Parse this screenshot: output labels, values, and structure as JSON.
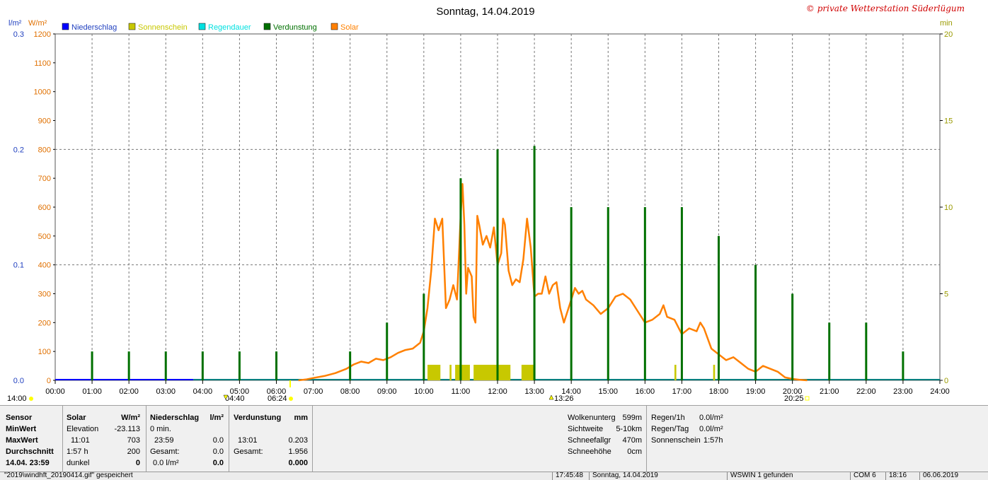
{
  "chart_data": {
    "type": "line",
    "title": "Sonntag, 14.04.2019",
    "copyright": "© private Wetterstation Süderlügum",
    "x_tick_labels": [
      "00:00",
      "01:00",
      "02:00",
      "03:00",
      "04:00",
      "05:00",
      "06:00",
      "07:00",
      "08:00",
      "09:00",
      "10:00",
      "11:00",
      "12:00",
      "13:00",
      "14:00",
      "15:00",
      "16:00",
      "17:00",
      "18:00",
      "19:00",
      "20:00",
      "21:00",
      "22:00",
      "23:00",
      "24:00"
    ],
    "xlim": [
      0,
      24
    ],
    "axes": {
      "left_outer": {
        "unit": "l/m²",
        "ticks": [
          "0.0",
          "0.1",
          "0.2",
          "0.3"
        ],
        "ylim": [
          0,
          0.3
        ],
        "color": "#1f3fbf"
      },
      "left_inner": {
        "unit": "W/m²",
        "ticks": [
          "0",
          "100",
          "200",
          "300",
          "400",
          "500",
          "600",
          "700",
          "800",
          "900",
          "1000",
          "1100",
          "1200"
        ],
        "ylim": [
          0,
          1200
        ],
        "color": "#e07000"
      },
      "right": {
        "unit": "min",
        "ticks": [
          "0",
          "5",
          "10",
          "15",
          "20"
        ],
        "ylim": [
          0,
          20
        ],
        "color": "#9a9a00"
      }
    },
    "legend": [
      {
        "name": "Niederschlag",
        "color": "#0000ff"
      },
      {
        "name": "Sonnenschein",
        "color": "#c8c800"
      },
      {
        "name": "Regendauer",
        "color": "#00e0e0"
      },
      {
        "name": "Verdunstung",
        "color": "#007000"
      },
      {
        "name": "Solar",
        "color": "#ff8000"
      }
    ],
    "grid": true,
    "series": [
      {
        "name": "Solar",
        "axis": "W/m²",
        "points": [
          [
            6.6,
            0
          ],
          [
            6.8,
            3
          ],
          [
            7.0,
            8
          ],
          [
            7.3,
            15
          ],
          [
            7.6,
            25
          ],
          [
            7.9,
            40
          ],
          [
            8.1,
            55
          ],
          [
            8.3,
            65
          ],
          [
            8.5,
            60
          ],
          [
            8.7,
            75
          ],
          [
            8.9,
            70
          ],
          [
            9.1,
            80
          ],
          [
            9.3,
            95
          ],
          [
            9.5,
            105
          ],
          [
            9.7,
            110
          ],
          [
            9.9,
            130
          ],
          [
            10.0,
            170
          ],
          [
            10.1,
            250
          ],
          [
            10.2,
            380
          ],
          [
            10.3,
            560
          ],
          [
            10.4,
            520
          ],
          [
            10.5,
            560
          ],
          [
            10.6,
            250
          ],
          [
            10.7,
            280
          ],
          [
            10.8,
            330
          ],
          [
            10.9,
            280
          ],
          [
            11.0,
            570
          ],
          [
            11.05,
            680
          ],
          [
            11.1,
            540
          ],
          [
            11.15,
            300
          ],
          [
            11.2,
            390
          ],
          [
            11.3,
            360
          ],
          [
            11.35,
            220
          ],
          [
            11.4,
            200
          ],
          [
            11.45,
            570
          ],
          [
            11.5,
            540
          ],
          [
            11.6,
            470
          ],
          [
            11.7,
            500
          ],
          [
            11.8,
            460
          ],
          [
            11.9,
            530
          ],
          [
            12.0,
            400
          ],
          [
            12.1,
            440
          ],
          [
            12.15,
            560
          ],
          [
            12.2,
            540
          ],
          [
            12.3,
            380
          ],
          [
            12.4,
            330
          ],
          [
            12.5,
            350
          ],
          [
            12.6,
            340
          ],
          [
            12.7,
            420
          ],
          [
            12.8,
            560
          ],
          [
            12.9,
            460
          ],
          [
            13.0,
            290
          ],
          [
            13.1,
            300
          ],
          [
            13.2,
            300
          ],
          [
            13.3,
            360
          ],
          [
            13.4,
            300
          ],
          [
            13.5,
            330
          ],
          [
            13.6,
            340
          ],
          [
            13.7,
            250
          ],
          [
            13.8,
            200
          ],
          [
            13.9,
            240
          ],
          [
            14.0,
            280
          ],
          [
            14.1,
            320
          ],
          [
            14.2,
            300
          ],
          [
            14.3,
            310
          ],
          [
            14.4,
            280
          ],
          [
            14.6,
            260
          ],
          [
            14.8,
            230
          ],
          [
            15.0,
            250
          ],
          [
            15.2,
            290
          ],
          [
            15.4,
            300
          ],
          [
            15.6,
            280
          ],
          [
            15.8,
            240
          ],
          [
            16.0,
            200
          ],
          [
            16.2,
            210
          ],
          [
            16.4,
            230
          ],
          [
            16.5,
            260
          ],
          [
            16.6,
            220
          ],
          [
            16.8,
            210
          ],
          [
            17.0,
            160
          ],
          [
            17.2,
            180
          ],
          [
            17.4,
            170
          ],
          [
            17.5,
            200
          ],
          [
            17.6,
            180
          ],
          [
            17.8,
            110
          ],
          [
            18.0,
            90
          ],
          [
            18.2,
            70
          ],
          [
            18.4,
            80
          ],
          [
            18.6,
            60
          ],
          [
            18.8,
            40
          ],
          [
            19.0,
            30
          ],
          [
            19.2,
            50
          ],
          [
            19.4,
            40
          ],
          [
            19.6,
            30
          ],
          [
            19.8,
            10
          ],
          [
            20.0,
            5
          ],
          [
            20.2,
            2
          ],
          [
            20.4,
            0
          ]
        ]
      },
      {
        "name": "Verdunstung",
        "axis": "l/m²",
        "bars": [
          [
            1.0,
            0.025
          ],
          [
            2.0,
            0.025
          ],
          [
            3.0,
            0.025
          ],
          [
            4.0,
            0.025
          ],
          [
            5.0,
            0.025
          ],
          [
            6.0,
            0.025
          ],
          [
            8.0,
            0.025
          ],
          [
            9.0,
            0.05
          ],
          [
            10.0,
            0.075
          ],
          [
            11.0,
            0.175
          ],
          [
            12.0,
            0.2
          ],
          [
            13.0,
            0.203
          ],
          [
            14.0,
            0.15
          ],
          [
            15.0,
            0.15
          ],
          [
            16.0,
            0.15
          ],
          [
            17.0,
            0.15
          ],
          [
            18.0,
            0.125
          ],
          [
            19.0,
            0.1
          ],
          [
            20.0,
            0.075
          ],
          [
            21.0,
            0.05
          ],
          [
            22.0,
            0.05
          ],
          [
            23.0,
            0.025
          ]
        ]
      },
      {
        "name": "Sonnenschein",
        "axis": "min",
        "bars": [
          [
            10.1,
            10.45,
            1
          ],
          [
            10.7,
            10.75,
            1
          ],
          [
            10.85,
            11.25,
            1
          ],
          [
            11.35,
            12.35,
            1
          ],
          [
            12.65,
            12.98,
            1
          ],
          [
            16.8,
            16.85,
            1
          ],
          [
            17.85,
            17.9,
            1
          ]
        ]
      }
    ],
    "below_axis": {
      "left_time": "14:00",
      "sunrise": "04:40",
      "dawn": "06:24",
      "noon": "13:26",
      "sunset": "20:25"
    }
  },
  "table": {
    "col_sensor": [
      "Sensor",
      "MinWert",
      "MaxWert",
      "Durchschnitt",
      "14.04. 23:59"
    ],
    "solar": {
      "head": "Solar",
      "unit": "W/m²",
      "r1a": "Elevation",
      "r1b": "-23.113",
      "r2a": "11:01",
      "r2b": "703",
      "r3a": "1:57 h",
      "r3b": "200",
      "r4a": "dunkel",
      "r4b": "0"
    },
    "rain": {
      "head": "Niederschlag",
      "unit": "l/m²",
      "r1a": "0 min.",
      "r1b": "",
      "r2a": "23:59",
      "r2b": "0.0",
      "r3a": "Gesamt:",
      "r3b": "0.0",
      "r4a": "0.0 l/m²",
      "r4b": "0.0"
    },
    "evap": {
      "head": "Verdunstung",
      "unit": "mm",
      "r1a": "",
      "r1b": "",
      "r2a": "13:01",
      "r2b": "0.203",
      "r3a": "Gesamt:",
      "r3b": "1.956",
      "r4a": "",
      "r4b": "0.000"
    },
    "weather": [
      {
        "k": "Wolkenunterg",
        "v": "599m"
      },
      {
        "k": "Sichtweite",
        "v": "5-10km"
      },
      {
        "k": "Schneefallgr",
        "v": "470m"
      },
      {
        "k": "Schneehöhe",
        "v": "0cm"
      }
    ],
    "rainstats": [
      {
        "k": "Regen/1h",
        "v": "0.0l/m²"
      },
      {
        "k": "Regen/Tag",
        "v": "0.0l/m²"
      },
      {
        "k": "Sonnenschein",
        "v": "1:57h"
      }
    ]
  },
  "status": {
    "file": "\"2019\\windhft_20190414.gif\" gespeichert",
    "time": "17:45:48",
    "date": "Sonntag, 14.04.2019",
    "wswin": "WSWIN 1 gefunden",
    "com": "COM 6",
    "clock": "18:16",
    "today": "06.06.2019"
  }
}
